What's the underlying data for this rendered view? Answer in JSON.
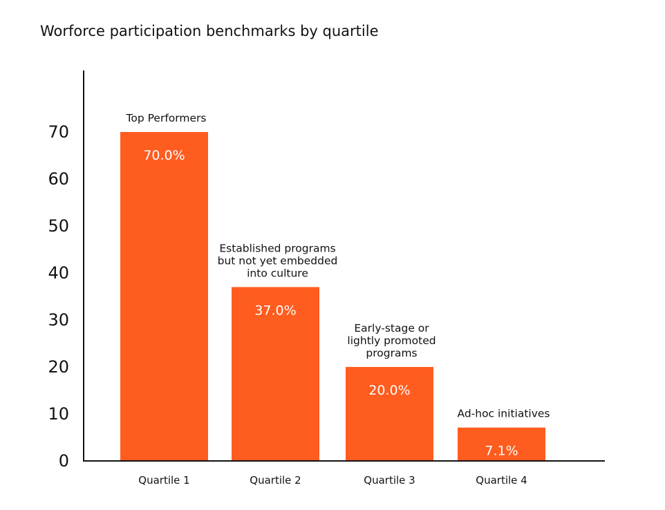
{
  "chart_data": {
    "type": "bar",
    "title": "Worforce participation benchmarks by quartile",
    "xlabel": "",
    "ylabel": "",
    "ylim": [
      0,
      80
    ],
    "yticks": [
      0,
      10,
      20,
      30,
      40,
      50,
      60,
      70
    ],
    "categories": [
      "Quartile 1",
      "Quartile 2",
      "Quartile 3",
      "Quartile 4"
    ],
    "values": [
      70.0,
      37.0,
      20.0,
      7.1
    ],
    "value_labels": [
      "70.0%",
      "37.0%",
      "20.0%",
      "7.1%"
    ],
    "annotations": [
      [
        "Top Performers"
      ],
      [
        "Established programs",
        "but not yet embedded",
        "into culture"
      ],
      [
        "Early-stage or",
        "lightly promoted",
        "programs"
      ],
      [
        "Ad-hoc initiatives"
      ]
    ],
    "bar_color": "#FF5C1F",
    "grid": false,
    "legend": "none"
  }
}
